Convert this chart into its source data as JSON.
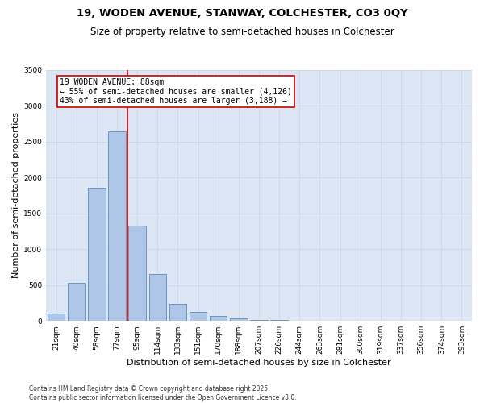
{
  "title1": "19, WODEN AVENUE, STANWAY, COLCHESTER, CO3 0QY",
  "title2": "Size of property relative to semi-detached houses in Colchester",
  "xlabel": "Distribution of semi-detached houses by size in Colchester",
  "ylabel": "Number of semi-detached properties",
  "categories": [
    "21sqm",
    "40sqm",
    "58sqm",
    "77sqm",
    "95sqm",
    "114sqm",
    "133sqm",
    "151sqm",
    "170sqm",
    "188sqm",
    "207sqm",
    "226sqm",
    "244sqm",
    "263sqm",
    "281sqm",
    "300sqm",
    "319sqm",
    "337sqm",
    "356sqm",
    "374sqm",
    "393sqm"
  ],
  "values": [
    100,
    530,
    1850,
    2640,
    1330,
    650,
    240,
    130,
    70,
    40,
    15,
    8,
    4,
    2,
    1,
    0,
    0,
    0,
    0,
    0,
    0
  ],
  "bar_color": "#aec6e8",
  "bar_edge_color": "#5b8db8",
  "vline_x_index": 3.5,
  "vline_color": "#cc0000",
  "annotation_line1": "19 WODEN AVENUE: 88sqm",
  "annotation_line2": "← 55% of semi-detached houses are smaller (4,126)",
  "annotation_line3": "43% of semi-detached houses are larger (3,188) →",
  "annotation_box_color": "#cc0000",
  "annotation_box_bg": "#ffffff",
  "ylim": [
    0,
    3500
  ],
  "yticks": [
    0,
    500,
    1000,
    1500,
    2000,
    2500,
    3000,
    3500
  ],
  "grid_color": "#d0d8e8",
  "background_color": "#dce6f5",
  "footnote": "Contains HM Land Registry data © Crown copyright and database right 2025.\nContains public sector information licensed under the Open Government Licence v3.0.",
  "title_fontsize": 9.5,
  "subtitle_fontsize": 8.5,
  "axis_label_fontsize": 8,
  "tick_fontsize": 6.5,
  "annotation_fontsize": 7,
  "footnote_fontsize": 5.5
}
